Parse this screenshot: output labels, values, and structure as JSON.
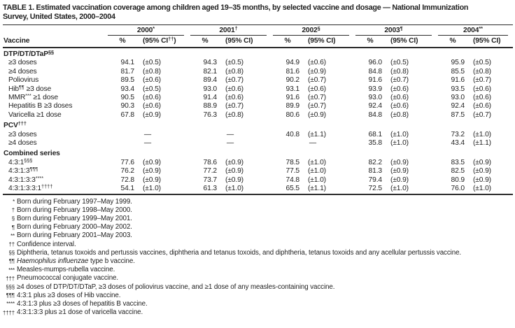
{
  "colors": {
    "ink": "#1f1f1f",
    "rule": "#2b2b2b",
    "background": "#ffffff"
  },
  "title_lines": [
    "TABLE 1. Estimated vaccination coverage among children aged 19–35 months, by selected vaccine and dosage — National Immunization",
    "Survey, United States, 2000–2004"
  ],
  "table": {
    "vaccine_header": "Vaccine",
    "years": [
      {
        "label": "2000",
        "sup": "*",
        "pct_header": "%",
        "ci_prefix": "(95% CI",
        "ci_sup": "††",
        "ci_suffix": ")"
      },
      {
        "label": "2001",
        "sup": "†",
        "pct_header": "%",
        "ci_prefix": "(95% CI",
        "ci_sup": "",
        "ci_suffix": ")"
      },
      {
        "label": "2002",
        "sup": "§",
        "pct_header": "%",
        "ci_prefix": "(95% CI",
        "ci_sup": "",
        "ci_suffix": ")"
      },
      {
        "label": "2003",
        "sup": "¶",
        "pct_header": "%",
        "ci_prefix": "(95% CI",
        "ci_sup": "",
        "ci_suffix": ")"
      },
      {
        "label": "2004",
        "sup": "**",
        "pct_header": "%",
        "ci_prefix": "(95% CI",
        "ci_sup": "",
        "ci_suffix": ")"
      }
    ],
    "rows": [
      {
        "section": true,
        "parts": [
          {
            "t": "DTP/DT/DTaP"
          },
          {
            "t": "§§",
            "sup": true
          }
        ],
        "values": null
      },
      {
        "section": false,
        "parts": [
          {
            "t": "≥3 doses"
          }
        ],
        "values": [
          [
            "94.1",
            "(±0.5)"
          ],
          [
            "94.3",
            "(±0.5)"
          ],
          [
            "94.9",
            "(±0.6)"
          ],
          [
            "96.0",
            "(±0.5)"
          ],
          [
            "95.9",
            "(±0.5)"
          ]
        ]
      },
      {
        "section": false,
        "parts": [
          {
            "t": "≥4 doses"
          }
        ],
        "values": [
          [
            "81.7",
            "(±0.8)"
          ],
          [
            "82.1",
            "(±0.8)"
          ],
          [
            "81.6",
            "(±0.9)"
          ],
          [
            "84.8",
            "(±0.8)"
          ],
          [
            "85.5",
            "(±0.8)"
          ]
        ]
      },
      {
        "section": false,
        "parts": [
          {
            "t": "Poliovirus"
          }
        ],
        "values": [
          [
            "89.5",
            "(±0.6)"
          ],
          [
            "89.4",
            "(±0.7)"
          ],
          [
            "90.2",
            "(±0.7)"
          ],
          [
            "91.6",
            "(±0.7)"
          ],
          [
            "91.6",
            "(±0.7)"
          ]
        ]
      },
      {
        "section": false,
        "parts": [
          {
            "t": "Hib"
          },
          {
            "t": "¶¶",
            "sup": true
          },
          {
            "t": " ≥3 dose"
          }
        ],
        "values": [
          [
            "93.4",
            "(±0.5)"
          ],
          [
            "93.0",
            "(±0.6)"
          ],
          [
            "93.1",
            "(±0.6)"
          ],
          [
            "93.9",
            "(±0.6)"
          ],
          [
            "93.5",
            "(±0.6)"
          ]
        ]
      },
      {
        "section": false,
        "parts": [
          {
            "t": "MMR"
          },
          {
            "t": "***",
            "sup": true
          },
          {
            "t": " ≥1 dose"
          }
        ],
        "values": [
          [
            "90.5",
            "(±0.6)"
          ],
          [
            "91.4",
            "(±0.6)"
          ],
          [
            "91.6",
            "(±0.7)"
          ],
          [
            "93.0",
            "(±0.6)"
          ],
          [
            "93.0",
            "(±0.6)"
          ]
        ]
      },
      {
        "section": false,
        "parts": [
          {
            "t": "Hepatitis B ≥3 doses"
          }
        ],
        "values": [
          [
            "90.3",
            "(±0.6)"
          ],
          [
            "88.9",
            "(±0.7)"
          ],
          [
            "89.9",
            "(±0.7)"
          ],
          [
            "92.4",
            "(±0.6)"
          ],
          [
            "92.4",
            "(±0.6)"
          ]
        ]
      },
      {
        "section": false,
        "parts": [
          {
            "t": "Varicella ≥1 dose"
          }
        ],
        "values": [
          [
            "67.8",
            "(±0.9)"
          ],
          [
            "76.3",
            "(±0.8)"
          ],
          [
            "80.6",
            "(±0.9)"
          ],
          [
            "84.8",
            "(±0.8)"
          ],
          [
            "87.5",
            "(±0.7)"
          ]
        ]
      },
      {
        "section": true,
        "parts": [
          {
            "t": "PCV"
          },
          {
            "t": "†††",
            "sup": true
          }
        ],
        "values": null
      },
      {
        "section": false,
        "parts": [
          {
            "t": "≥3 doses"
          }
        ],
        "values": [
          "—",
          "—",
          [
            "40.8",
            "(±1.1)"
          ],
          [
            "68.1",
            "(±1.0)"
          ],
          [
            "73.2",
            "(±1.0)"
          ]
        ]
      },
      {
        "section": false,
        "parts": [
          {
            "t": "≥4 doses"
          }
        ],
        "values": [
          "—",
          "—",
          "—",
          [
            "35.8",
            "(±1.0)"
          ],
          [
            "43.4",
            "(±1.1)"
          ]
        ]
      },
      {
        "section": true,
        "parts": [
          {
            "t": "Combined series"
          }
        ],
        "values": null
      },
      {
        "section": false,
        "parts": [
          {
            "t": "4:3:1"
          },
          {
            "t": "§§§",
            "sup": true
          }
        ],
        "values": [
          [
            "77.6",
            "(±0.9)"
          ],
          [
            "78.6",
            "(±0.9)"
          ],
          [
            "78.5",
            "(±1.0)"
          ],
          [
            "82.2",
            "(±0.9)"
          ],
          [
            "83.5",
            "(±0.9)"
          ]
        ]
      },
      {
        "section": false,
        "parts": [
          {
            "t": "4:3:1:3"
          },
          {
            "t": "¶¶¶",
            "sup": true
          }
        ],
        "values": [
          [
            "76.2",
            "(±0.9)"
          ],
          [
            "77.2",
            "(±0.9)"
          ],
          [
            "77.5",
            "(±1.0)"
          ],
          [
            "81.3",
            "(±0.9)"
          ],
          [
            "82.5",
            "(±0.9)"
          ]
        ]
      },
      {
        "section": false,
        "parts": [
          {
            "t": "4:3:1:3:3"
          },
          {
            "t": "****",
            "sup": true
          }
        ],
        "values": [
          [
            "72.8",
            "(±0.9)"
          ],
          [
            "73.7",
            "(±0.9)"
          ],
          [
            "74.8",
            "(±1.0)"
          ],
          [
            "79.4",
            "(±0.9)"
          ],
          [
            "80.9",
            "(±0.9)"
          ]
        ]
      },
      {
        "section": false,
        "parts": [
          {
            "t": "4:3:1:3:3:1"
          },
          {
            "t": "††††",
            "sup": true
          }
        ],
        "values": [
          [
            "54.1",
            "(±1.0)"
          ],
          [
            "61.3",
            "(±1.0)"
          ],
          [
            "65.5",
            "(±1.1)"
          ],
          [
            "72.5",
            "(±1.0)"
          ],
          [
            "76.0",
            "(±1.0)"
          ]
        ]
      }
    ]
  },
  "footnotes": [
    {
      "sym": "*",
      "parts": [
        {
          "t": "Born during February 1997–May 1999."
        }
      ]
    },
    {
      "sym": "†",
      "parts": [
        {
          "t": "Born during February 1998–May 2000."
        }
      ]
    },
    {
      "sym": "§",
      "parts": [
        {
          "t": "Born during February 1999–May 2001."
        }
      ]
    },
    {
      "sym": "¶",
      "parts": [
        {
          "t": "Born during February 2000–May 2002."
        }
      ]
    },
    {
      "sym": "**",
      "parts": [
        {
          "t": "Born during February 2001–May 2003."
        }
      ]
    },
    {
      "sym": "††",
      "parts": [
        {
          "t": "Confidence interval."
        }
      ]
    },
    {
      "sym": "§§",
      "parts": [
        {
          "t": "Diphtheria, tetanus toxoids and pertussis vaccines, diphtheria and tetanus toxoids, and diphtheria, tetanus toxoids and any acellular pertussis vaccine."
        }
      ]
    },
    {
      "sym": "¶¶",
      "parts": [
        {
          "t": "Haemophilus influenzae",
          "italic": true
        },
        {
          "t": " type b vaccine."
        }
      ]
    },
    {
      "sym": "***",
      "parts": [
        {
          "t": "Measles-mumps-rubella vaccine."
        }
      ]
    },
    {
      "sym": "†††",
      "parts": [
        {
          "t": "Pneumococcal conjugate vaccine."
        }
      ]
    },
    {
      "sym": "§§§",
      "parts": [
        {
          "t": "≥4 doses of DTP/DT/DTaP, ≥3 doses of poliovirus vaccine, and ≥1 dose of any measles-containing vaccine."
        }
      ]
    },
    {
      "sym": "¶¶¶",
      "parts": [
        {
          "t": "4:3:1 plus ≥3 doses of Hib vaccine."
        }
      ]
    },
    {
      "sym": "****",
      "parts": [
        {
          "t": "4:3:1:3 plus ≥3 doses of hepatitis B vaccine."
        }
      ]
    },
    {
      "sym": "††††",
      "parts": [
        {
          "t": "4:3:1:3:3 plus ≥1 dose of varicella vaccine."
        }
      ]
    }
  ]
}
